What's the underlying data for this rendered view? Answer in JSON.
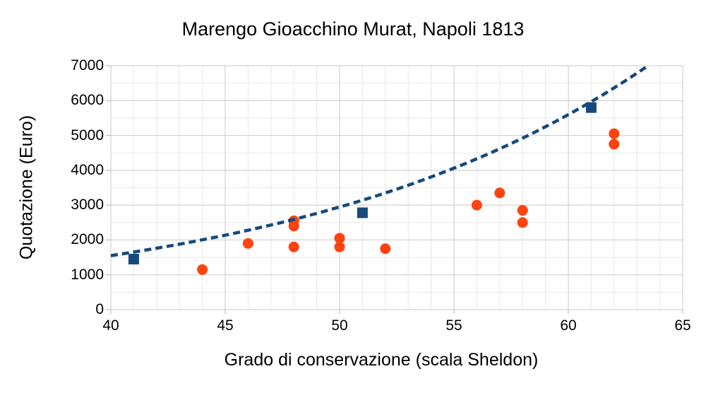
{
  "chart_data": {
    "type": "scatter",
    "title": "Marengo Gioacchino Murat, Napoli 1813",
    "xlabel": "Grado di conservazione (scala Sheldon)",
    "ylabel": "Quotazione (Euro)",
    "xlim": [
      40,
      65
    ],
    "ylim": [
      0,
      7000
    ],
    "x_ticks": [
      40,
      45,
      50,
      55,
      60,
      65
    ],
    "y_ticks": [
      0,
      1000,
      2000,
      3000,
      4000,
      5000,
      6000,
      7000
    ],
    "x_minor_step": 1,
    "y_minor_step": 500,
    "grid": true,
    "legend": "none",
    "series": [
      {
        "marker": "circle",
        "color": "#ff420e",
        "points": [
          [
            44,
            1150
          ],
          [
            46,
            1900
          ],
          [
            48,
            2550
          ],
          [
            48,
            2400
          ],
          [
            48,
            1800
          ],
          [
            50,
            2050
          ],
          [
            50,
            1800
          ],
          [
            52,
            1750
          ],
          [
            56,
            3000
          ],
          [
            57,
            3350
          ],
          [
            58,
            2850
          ],
          [
            58,
            2500
          ],
          [
            62,
            5050
          ],
          [
            62,
            4750
          ]
        ]
      },
      {
        "marker": "square",
        "color": "#164a7c",
        "points": [
          [
            41,
            1450
          ],
          [
            51,
            2780
          ],
          [
            61,
            5800
          ]
        ]
      }
    ],
    "trend": {
      "type": "exponential",
      "style": "dashed",
      "color": "#164a7c",
      "x_start": 40,
      "x_end": 63.5,
      "value_at_start": 1550,
      "rate_per_unit": 0.0642
    }
  },
  "colors": {
    "background": "#ffffff",
    "grid_minor": "#e8e8e8",
    "grid_major": "#c9c9c9",
    "plot_border": "#c9c9c9",
    "axis_line": "#b0b0b0",
    "text": "#000000",
    "circle_series": "#ff420e",
    "square_series": "#164a7c",
    "trend_line": "#164a7c"
  }
}
